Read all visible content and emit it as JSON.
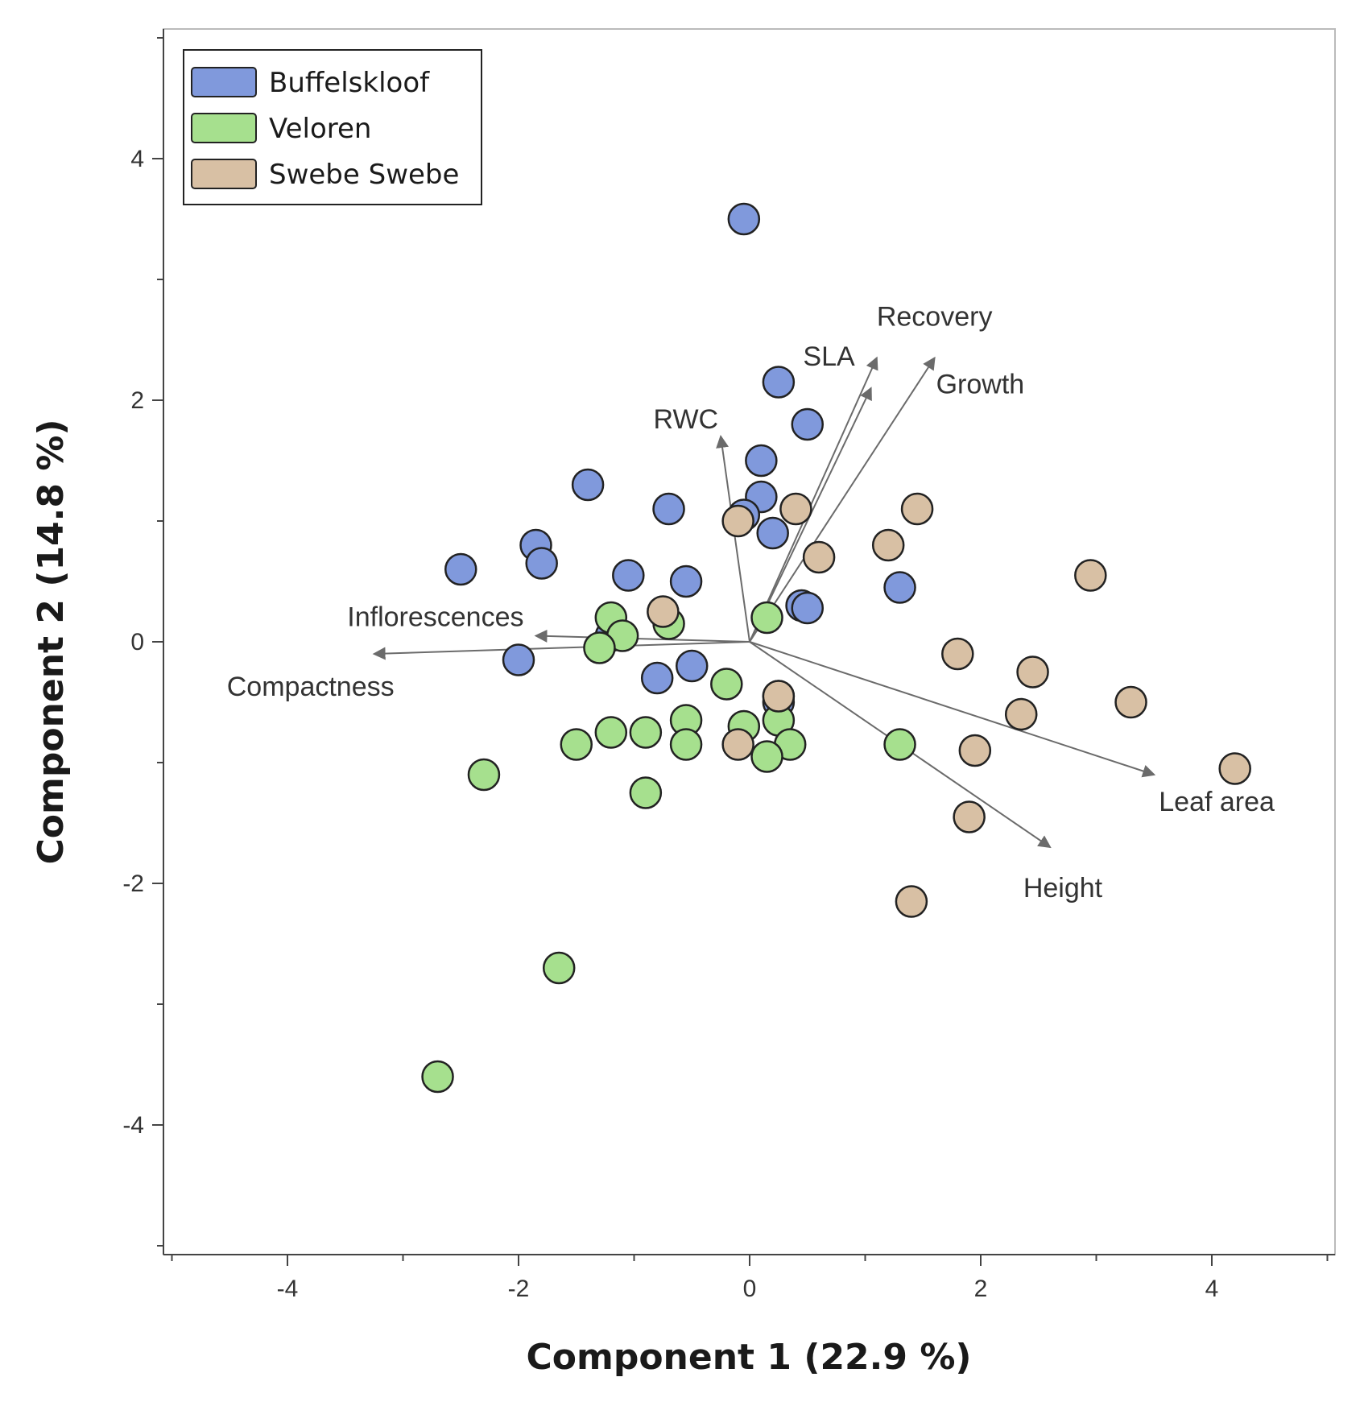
{
  "chart_data": {
    "type": "scatter",
    "subtype": "pca-biplot",
    "title": "",
    "xlabel": "Component 1  (22.9 %)",
    "ylabel": "Component 2  (14.8 %)",
    "xlim": [
      -5,
      5
    ],
    "ylim": [
      -5,
      5
    ],
    "xticks": [
      -4,
      -2,
      0,
      2,
      4
    ],
    "yticks": [
      4,
      2,
      0,
      -2,
      -4
    ],
    "xtick_labels": [
      "-4",
      "-2",
      "0",
      "2",
      "4"
    ],
    "ytick_labels": [
      "4",
      "2",
      "0",
      "-2",
      "-4"
    ],
    "grid": false,
    "legend_position": "top-left",
    "colors": {
      "axis": "#444444",
      "vector": "#6b6b6b",
      "frame": "#bbbbbb"
    },
    "series": [
      {
        "name": "Buffelskloof",
        "color": "#8099dc",
        "points": [
          [
            -0.05,
            3.5
          ],
          [
            0.25,
            2.15
          ],
          [
            0.5,
            1.8
          ],
          [
            0.1,
            1.5
          ],
          [
            0.1,
            1.2
          ],
          [
            -0.05,
            1.05
          ],
          [
            0.2,
            0.9
          ],
          [
            -0.7,
            1.1
          ],
          [
            -1.4,
            1.3
          ],
          [
            -1.85,
            0.8
          ],
          [
            -1.8,
            0.65
          ],
          [
            -2.5,
            0.6
          ],
          [
            -1.05,
            0.55
          ],
          [
            -0.55,
            0.5
          ],
          [
            1.3,
            0.45
          ],
          [
            0.45,
            0.3
          ],
          [
            0.5,
            0.28
          ],
          [
            -1.2,
            0.05
          ],
          [
            -2.0,
            -0.15
          ],
          [
            -0.5,
            -0.2
          ],
          [
            -0.8,
            -0.3
          ],
          [
            0.25,
            -0.45
          ],
          [
            0.25,
            -0.5
          ]
        ]
      },
      {
        "name": "Veloren",
        "color": "#a6e08e",
        "points": [
          [
            0.15,
            0.2
          ],
          [
            -1.2,
            0.2
          ],
          [
            -0.7,
            0.15
          ],
          [
            -1.1,
            0.05
          ],
          [
            -1.3,
            -0.05
          ],
          [
            -0.2,
            -0.35
          ],
          [
            -0.55,
            -0.65
          ],
          [
            -0.05,
            -0.7
          ],
          [
            0.25,
            -0.65
          ],
          [
            -1.2,
            -0.75
          ],
          [
            -0.9,
            -0.75
          ],
          [
            -1.5,
            -0.85
          ],
          [
            -0.55,
            -0.85
          ],
          [
            0.35,
            -0.85
          ],
          [
            1.3,
            -0.85
          ],
          [
            0.15,
            -0.95
          ],
          [
            -2.3,
            -1.1
          ],
          [
            -0.9,
            -1.25
          ],
          [
            -1.65,
            -2.7
          ],
          [
            -2.7,
            -3.6
          ]
        ]
      },
      {
        "name": "Swebe Swebe",
        "color": "#d8c0a4",
        "points": [
          [
            0.4,
            1.1
          ],
          [
            1.45,
            1.1
          ],
          [
            -0.1,
            1.0
          ],
          [
            1.2,
            0.8
          ],
          [
            0.6,
            0.7
          ],
          [
            2.95,
            0.55
          ],
          [
            -0.75,
            0.25
          ],
          [
            1.8,
            -0.1
          ],
          [
            2.45,
            -0.25
          ],
          [
            3.3,
            -0.5
          ],
          [
            2.35,
            -0.6
          ],
          [
            0.25,
            -0.45
          ],
          [
            -0.1,
            -0.85
          ],
          [
            1.95,
            -0.9
          ],
          [
            4.2,
            -1.05
          ],
          [
            1.9,
            -1.45
          ],
          [
            1.4,
            -2.15
          ]
        ]
      }
    ],
    "loading_vectors": [
      {
        "name": "SLA",
        "x": 1.05,
        "y": 2.1
      },
      {
        "name": "Recovery",
        "x": 1.1,
        "y": 2.35
      },
      {
        "name": "Growth",
        "x": 1.6,
        "y": 2.35
      },
      {
        "name": "RWC",
        "x": -0.25,
        "y": 1.7
      },
      {
        "name": "Inflorescences",
        "x": -1.85,
        "y": 0.05
      },
      {
        "name": "Compactness",
        "x": -3.25,
        "y": -0.1
      },
      {
        "name": "Leaf area",
        "x": 3.5,
        "y": -1.1
      },
      {
        "name": "Height",
        "x": 2.6,
        "y": -1.7
      }
    ]
  }
}
